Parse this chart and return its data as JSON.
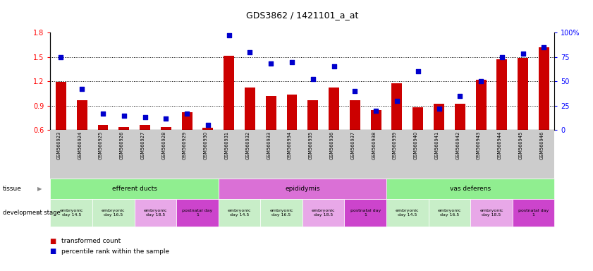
{
  "title": "GDS3862 / 1421101_a_at",
  "samples": [
    "GSM560923",
    "GSM560924",
    "GSM560925",
    "GSM560926",
    "GSM560927",
    "GSM560928",
    "GSM560929",
    "GSM560930",
    "GSM560931",
    "GSM560932",
    "GSM560933",
    "GSM560934",
    "GSM560935",
    "GSM560936",
    "GSM560937",
    "GSM560938",
    "GSM560939",
    "GSM560940",
    "GSM560941",
    "GSM560942",
    "GSM560943",
    "GSM560944",
    "GSM560945",
    "GSM560946"
  ],
  "bar_values": [
    1.19,
    0.97,
    0.66,
    0.64,
    0.66,
    0.64,
    0.82,
    0.63,
    1.51,
    1.12,
    1.02,
    1.04,
    0.97,
    1.12,
    0.97,
    0.85,
    1.18,
    0.88,
    0.92,
    0.92,
    1.22,
    1.47,
    1.49,
    1.62
  ],
  "dot_values": [
    75,
    42,
    17,
    15,
    13,
    12,
    17,
    5,
    97,
    80,
    68,
    70,
    52,
    65,
    40,
    20,
    30,
    60,
    22,
    35,
    50,
    75,
    78,
    85
  ],
  "bar_color": "#cc0000",
  "dot_color": "#0000cc",
  "ylim_left": [
    0.6,
    1.8
  ],
  "ylim_right": [
    0,
    100
  ],
  "yticks_left": [
    0.6,
    0.9,
    1.2,
    1.5,
    1.8
  ],
  "yticks_right": [
    0,
    25,
    50,
    75,
    100
  ],
  "yticklabels_right": [
    "0",
    "25",
    "50",
    "75",
    "100%"
  ],
  "dotted_lines": [
    0.9,
    1.2,
    1.5
  ],
  "tissues": [
    {
      "label": "efferent ducts",
      "start": 0,
      "end": 7,
      "color": "#90ee90"
    },
    {
      "label": "epididymis",
      "start": 8,
      "end": 15,
      "color": "#da70d6"
    },
    {
      "label": "vas deferens",
      "start": 16,
      "end": 23,
      "color": "#90ee90"
    }
  ],
  "dev_stages": [
    {
      "label": "embryonic\nday 14.5",
      "start": 0,
      "end": 1,
      "color": "#c8eec8"
    },
    {
      "label": "embryonic\nday 16.5",
      "start": 2,
      "end": 3,
      "color": "#c8eec8"
    },
    {
      "label": "embryonic\nday 18.5",
      "start": 4,
      "end": 5,
      "color": "#e8a8e8"
    },
    {
      "label": "postnatal day\n1",
      "start": 6,
      "end": 7,
      "color": "#cc44cc"
    },
    {
      "label": "embryonic\nday 14.5",
      "start": 8,
      "end": 9,
      "color": "#c8eec8"
    },
    {
      "label": "embryonic\nday 16.5",
      "start": 10,
      "end": 11,
      "color": "#c8eec8"
    },
    {
      "label": "embryonic\nday 18.5",
      "start": 12,
      "end": 13,
      "color": "#e8a8e8"
    },
    {
      "label": "postnatal day\n1",
      "start": 14,
      "end": 15,
      "color": "#cc44cc"
    },
    {
      "label": "embryonic\nday 14.5",
      "start": 16,
      "end": 17,
      "color": "#c8eec8"
    },
    {
      "label": "embryonic\nday 16.5",
      "start": 18,
      "end": 19,
      "color": "#c8eec8"
    },
    {
      "label": "embryonic\nday 18.5",
      "start": 20,
      "end": 21,
      "color": "#e8a8e8"
    },
    {
      "label": "postnatal day\n1",
      "start": 22,
      "end": 23,
      "color": "#cc44cc"
    }
  ],
  "background_color": "#ffffff",
  "plot_bg_color": "#ffffff",
  "sample_band_color": "#cccccc",
  "tissue_label": "tissue",
  "dev_label": "development stage"
}
